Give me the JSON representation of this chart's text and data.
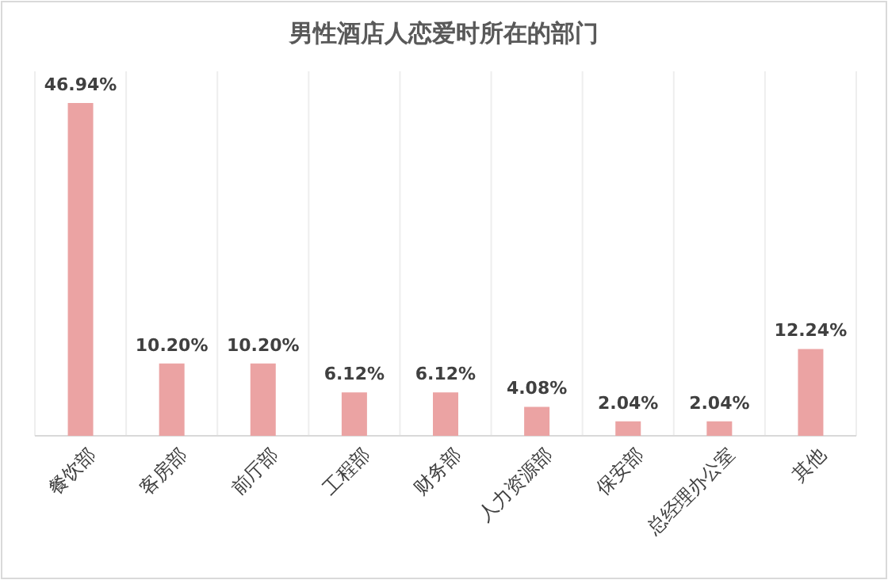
{
  "chart_data": {
    "type": "bar",
    "title": "男性酒店人恋爱时所在的部门",
    "categories": [
      "餐饮部",
      "客房部",
      "前厅部",
      "工程部",
      "财务部",
      "人力资源部",
      "保安部",
      "总经理办公室",
      "其他"
    ],
    "values": [
      46.94,
      10.2,
      10.2,
      6.12,
      6.12,
      4.08,
      2.04,
      2.04,
      12.24
    ],
    "value_labels": [
      "46.94%",
      "10.20%",
      "10.20%",
      "6.12%",
      "6.12%",
      "4.08%",
      "2.04%",
      "2.04%",
      "12.24%"
    ],
    "color": "#eba3a3"
  }
}
